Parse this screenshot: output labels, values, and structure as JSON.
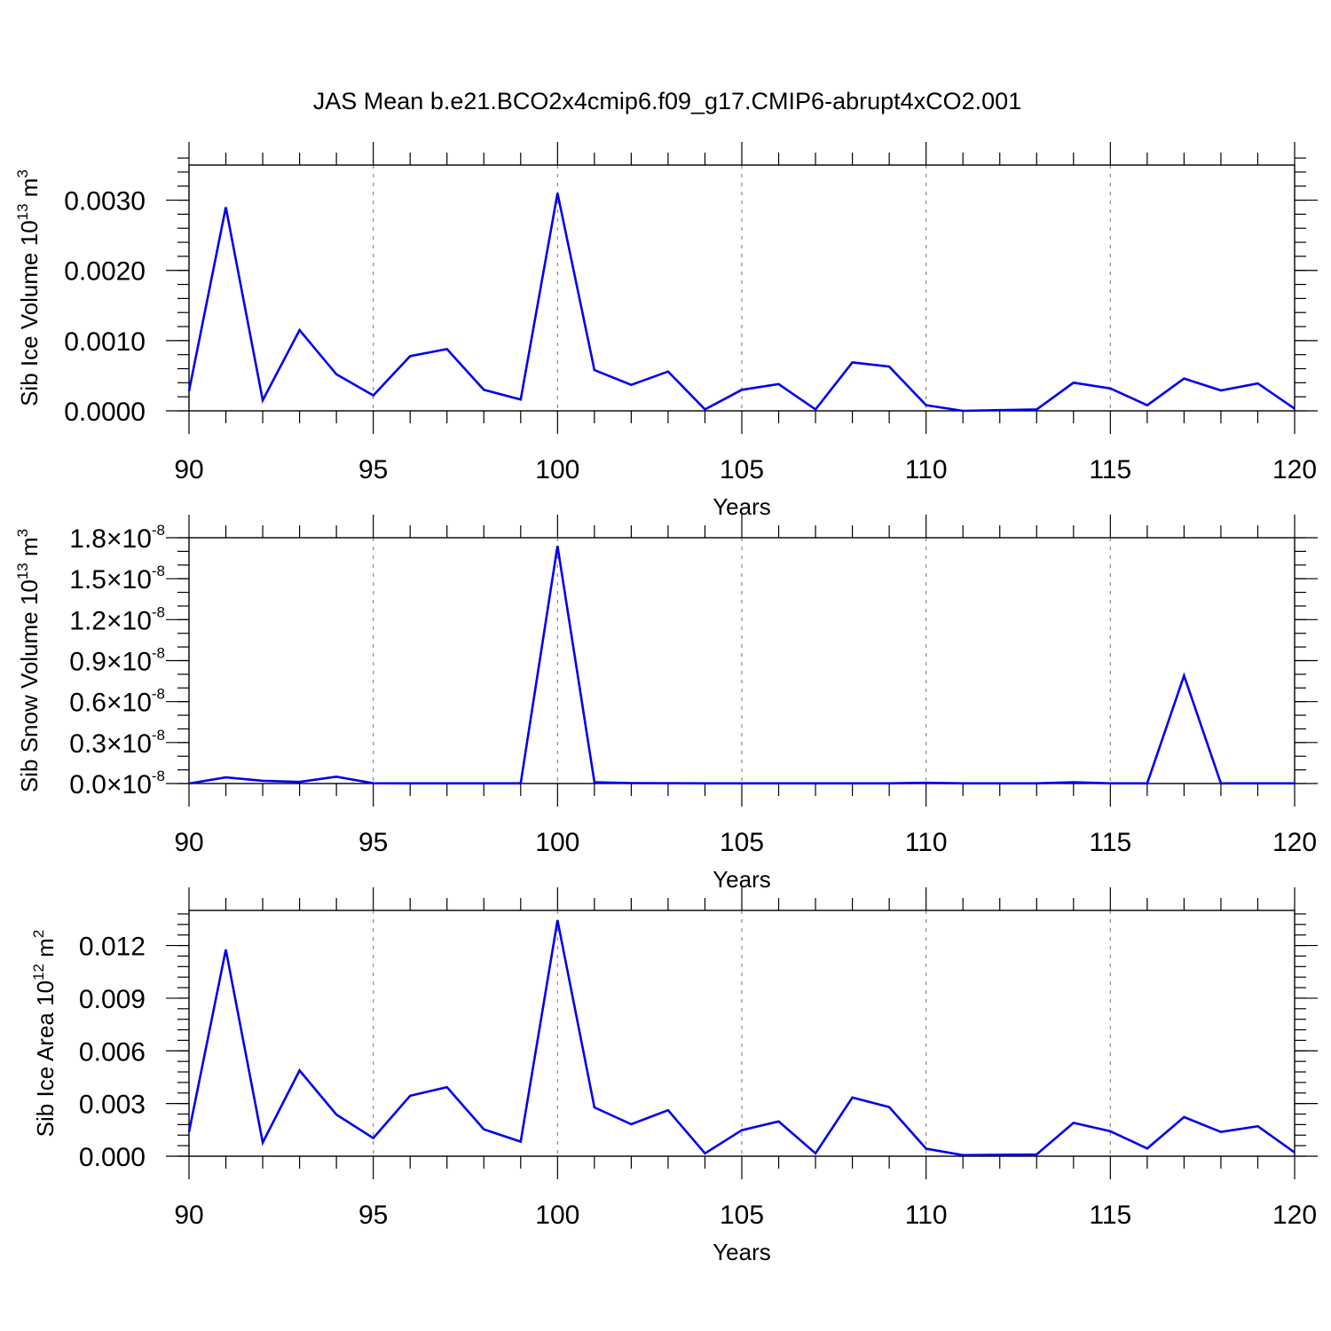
{
  "page_title": "JAS Mean b.e21.BCO2x4cmip6.f09_g17.CMIP6-abrupt4xCO2.001",
  "colors": {
    "series": "#0000ee",
    "grid": "#888888",
    "axis": "#000000"
  },
  "chart_data": [
    {
      "type": "line",
      "xlabel": "Years",
      "ylabel": "Sib Ice Volume 10",
      "ylabel_exp": "13",
      "ylabel_unit": " m",
      "ylabel_unit_exp": "3",
      "xlim": [
        90,
        120
      ],
      "ylim": [
        0,
        0.0035
      ],
      "xticks": [
        90,
        95,
        100,
        105,
        110,
        115,
        120
      ],
      "xtick_labels": [
        "90",
        "95",
        "100",
        "105",
        "110",
        "115",
        "120"
      ],
      "yticks": [
        0,
        0.001,
        0.002,
        0.003
      ],
      "ytick_labels": [
        "0.0000",
        "0.0010",
        "0.0020",
        "0.0030"
      ],
      "y_minor_step": 0.0002,
      "grid_x": [
        95,
        100,
        105,
        110,
        115
      ],
      "x": [
        90,
        91,
        92,
        93,
        94,
        95,
        96,
        97,
        98,
        99,
        100,
        101,
        102,
        103,
        104,
        105,
        106,
        107,
        108,
        109,
        110,
        111,
        112,
        113,
        114,
        115,
        116,
        117,
        118,
        119,
        120
      ],
      "series": [
        {
          "values": [
            0.00028,
            0.0029,
            0.00015,
            0.00115,
            0.00052,
            0.00022,
            0.00078,
            0.00088,
            0.0003,
            0.00016,
            0.0031,
            0.00058,
            0.00037,
            0.00056,
            2e-05,
            0.0003,
            0.00038,
            2e-05,
            0.00069,
            0.00063,
            8e-05,
            0.0,
            1e-05,
            2e-05,
            0.0004,
            0.00032,
            8e-05,
            0.00046,
            0.00029,
            0.00039,
            3e-05
          ]
        }
      ]
    },
    {
      "type": "line",
      "xlabel": "Years",
      "ylabel": "Sib Snow Volume 10",
      "ylabel_exp": "13",
      "ylabel_unit": " m",
      "ylabel_unit_exp": "3",
      "xlim": [
        90,
        120
      ],
      "ylim": [
        0,
        1.8e-08
      ],
      "xticks": [
        90,
        95,
        100,
        105,
        110,
        115,
        120
      ],
      "xtick_labels": [
        "90",
        "95",
        "100",
        "105",
        "110",
        "115",
        "120"
      ],
      "yticks": [
        0,
        3e-09,
        6e-09,
        9e-09,
        1.2e-08,
        1.5e-08,
        1.8e-08
      ],
      "ytick_labels": [
        "0.0",
        "0.3",
        "0.6",
        "0.9",
        "1.2",
        "1.5",
        "1.8"
      ],
      "ytick_mult": "×10",
      "ytick_exp": "-8",
      "y_minor_step": 1e-09,
      "grid_x": [
        95,
        100,
        105,
        110,
        115
      ],
      "x": [
        90,
        91,
        92,
        93,
        94,
        95,
        96,
        97,
        98,
        99,
        100,
        101,
        102,
        103,
        104,
        105,
        106,
        107,
        108,
        109,
        110,
        111,
        112,
        113,
        114,
        115,
        116,
        117,
        118,
        119,
        120
      ],
      "series": [
        {
          "values": [
            0.0,
            4.5e-10,
            2e-10,
            1.2e-10,
            5e-10,
            2e-11,
            1e-11,
            1e-11,
            1e-11,
            1e-11,
            1.74e-08,
            1e-10,
            3e-11,
            2e-11,
            1e-11,
            1e-11,
            1e-11,
            1e-11,
            1e-11,
            1e-11,
            5e-11,
            1e-11,
            1e-11,
            1e-11,
            1e-10,
            1e-11,
            1e-11,
            7.9e-09,
            1e-11,
            1e-11,
            1e-11
          ]
        }
      ]
    },
    {
      "type": "line",
      "xlabel": "Years",
      "ylabel": "Sib Ice Area 10",
      "ylabel_exp": "12",
      "ylabel_unit": " m",
      "ylabel_unit_exp": "2",
      "xlim": [
        90,
        120
      ],
      "ylim": [
        0,
        0.014
      ],
      "xticks": [
        90,
        95,
        100,
        105,
        110,
        115,
        120
      ],
      "xtick_labels": [
        "90",
        "95",
        "100",
        "105",
        "110",
        "115",
        "120"
      ],
      "yticks": [
        0,
        0.003,
        0.006,
        0.009,
        0.012
      ],
      "ytick_labels": [
        "0.000",
        "0.003",
        "0.006",
        "0.009",
        "0.012"
      ],
      "y_minor_step": 0.0006,
      "grid_x": [
        95,
        100,
        105,
        110,
        115
      ],
      "x": [
        90,
        91,
        92,
        93,
        94,
        95,
        96,
        97,
        98,
        99,
        100,
        101,
        102,
        103,
        104,
        105,
        106,
        107,
        108,
        109,
        110,
        111,
        112,
        113,
        114,
        115,
        116,
        117,
        118,
        119,
        120
      ],
      "series": [
        {
          "values": [
            0.00138,
            0.01177,
            0.00078,
            0.00488,
            0.00237,
            0.00103,
            0.00344,
            0.00393,
            0.00153,
            0.00083,
            0.01344,
            0.00278,
            0.00182,
            0.00262,
            0.00016,
            0.00148,
            0.00198,
            0.00016,
            0.00334,
            0.0028,
            0.00043,
            6e-05,
            8e-05,
            0.0001,
            0.0019,
            0.00142,
            0.00044,
            0.00223,
            0.00138,
            0.00171,
            0.00021
          ]
        }
      ]
    }
  ]
}
